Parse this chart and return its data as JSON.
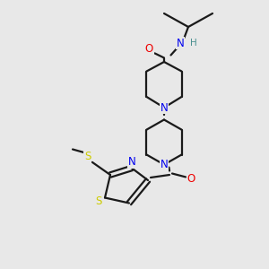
{
  "background_color": "#e8e8e8",
  "bond_color": "#1a1a1a",
  "N_color": "#0000ee",
  "O_color": "#ee0000",
  "S_color": "#cccc00",
  "H_color": "#4a9090",
  "figsize": [
    3.0,
    3.0
  ],
  "dpi": 100,
  "xlim": [
    0,
    10
  ],
  "ylim": [
    0,
    10
  ],
  "lw": 1.6,
  "fs": 8.5
}
